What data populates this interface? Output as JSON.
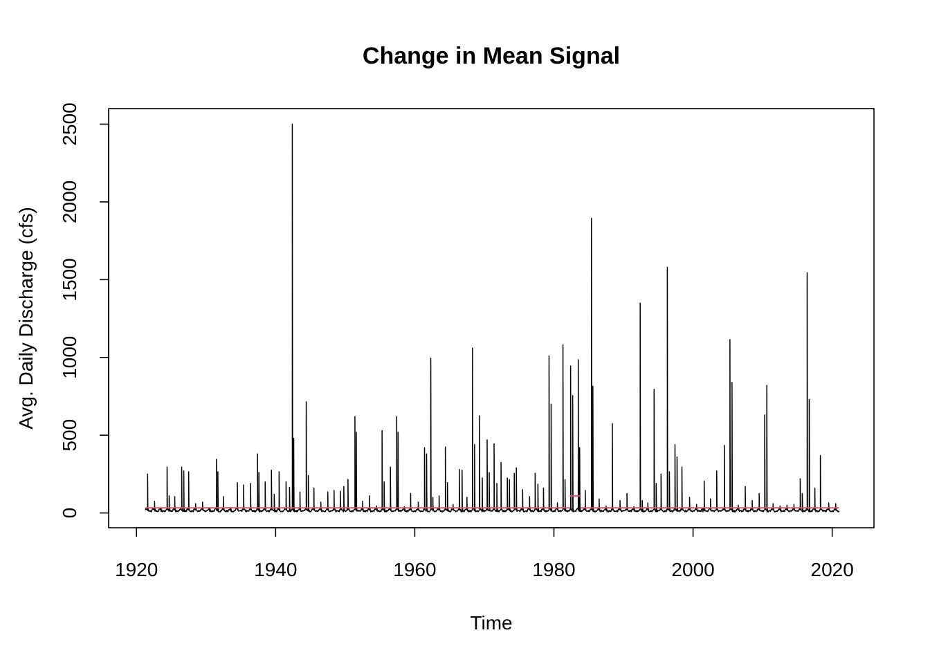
{
  "chart_data": {
    "type": "line",
    "title": "Change in Mean Signal",
    "xlabel": "Time",
    "ylabel": "Avg. Daily Discharge (cfs)",
    "xlim": [
      1916,
      2026
    ],
    "ylim": [
      -95,
      2600
    ],
    "x_ticks": [
      1920,
      1940,
      1960,
      1980,
      2000,
      2020
    ],
    "x_tick_labels": [
      "1920",
      "1940",
      "1960",
      "1980",
      "2000",
      "2020"
    ],
    "y_ticks": [
      0,
      500,
      1000,
      1500,
      2000,
      2500
    ],
    "y_tick_labels": [
      "0",
      "500",
      "1000",
      "1500",
      "2000",
      "2500"
    ],
    "grid": false,
    "legend": "none",
    "colors": {
      "series": "#000000",
      "mean": "#DF536B"
    },
    "series": [
      {
        "role": "discharge",
        "baseline": 12,
        "x_range": [
          1921.3,
          2021.0
        ],
        "peaks": [
          [
            1921.6,
            250
          ],
          [
            1922.6,
            75
          ],
          [
            1923.5,
            30
          ],
          [
            1924.4,
            295
          ],
          [
            1924.7,
            110
          ],
          [
            1925.5,
            105
          ],
          [
            1926.5,
            295
          ],
          [
            1926.8,
            270
          ],
          [
            1927.5,
            265
          ],
          [
            1928.5,
            60
          ],
          [
            1929.5,
            70
          ],
          [
            1930.5,
            25
          ],
          [
            1931.5,
            345
          ],
          [
            1931.7,
            265
          ],
          [
            1932.5,
            105
          ],
          [
            1933.5,
            35
          ],
          [
            1934.5,
            195
          ],
          [
            1935.4,
            180
          ],
          [
            1936.4,
            190
          ],
          [
            1937.4,
            380
          ],
          [
            1937.6,
            260
          ],
          [
            1938.5,
            200
          ],
          [
            1939.4,
            275
          ],
          [
            1939.8,
            120
          ],
          [
            1940.5,
            265
          ],
          [
            1941.5,
            200
          ],
          [
            1942.0,
            165
          ],
          [
            1942.4,
            2500
          ],
          [
            1942.6,
            480
          ],
          [
            1943.5,
            135
          ],
          [
            1944.4,
            715
          ],
          [
            1944.7,
            240
          ],
          [
            1945.5,
            160
          ],
          [
            1946.5,
            70
          ],
          [
            1947.5,
            135
          ],
          [
            1948.4,
            145
          ],
          [
            1949.3,
            140
          ],
          [
            1949.8,
            170
          ],
          [
            1950.4,
            215
          ],
          [
            1951.4,
            620
          ],
          [
            1951.6,
            520
          ],
          [
            1952.5,
            75
          ],
          [
            1953.5,
            110
          ],
          [
            1954.5,
            45
          ],
          [
            1955.3,
            530
          ],
          [
            1955.6,
            200
          ],
          [
            1956.5,
            295
          ],
          [
            1957.4,
            620
          ],
          [
            1957.6,
            520
          ],
          [
            1958.5,
            40
          ],
          [
            1959.4,
            125
          ],
          [
            1960.5,
            70
          ],
          [
            1961.4,
            420
          ],
          [
            1961.7,
            380
          ],
          [
            1962.3,
            995
          ],
          [
            1962.6,
            100
          ],
          [
            1963.5,
            110
          ],
          [
            1964.4,
            425
          ],
          [
            1964.7,
            195
          ],
          [
            1965.5,
            55
          ],
          [
            1966.4,
            280
          ],
          [
            1966.8,
            275
          ],
          [
            1967.5,
            100
          ],
          [
            1968.3,
            1060
          ],
          [
            1968.6,
            440
          ],
          [
            1969.3,
            625
          ],
          [
            1969.7,
            225
          ],
          [
            1970.4,
            470
          ],
          [
            1970.7,
            260
          ],
          [
            1971.4,
            445
          ],
          [
            1971.8,
            190
          ],
          [
            1972.4,
            325
          ],
          [
            1973.3,
            225
          ],
          [
            1973.6,
            215
          ],
          [
            1974.3,
            255
          ],
          [
            1974.6,
            290
          ],
          [
            1975.5,
            150
          ],
          [
            1976.5,
            105
          ],
          [
            1977.3,
            255
          ],
          [
            1977.7,
            185
          ],
          [
            1978.5,
            160
          ],
          [
            1979.3,
            1010
          ],
          [
            1979.6,
            700
          ],
          [
            1980.5,
            65
          ],
          [
            1981.3,
            1080
          ],
          [
            1981.6,
            215
          ],
          [
            1982.4,
            945
          ],
          [
            1982.7,
            755
          ],
          [
            1983.5,
            985
          ],
          [
            1983.7,
            420
          ],
          [
            1984.5,
            145
          ],
          [
            1985.4,
            1895
          ],
          [
            1985.6,
            815
          ],
          [
            1986.5,
            90
          ],
          [
            1987.5,
            45
          ],
          [
            1988.4,
            575
          ],
          [
            1989.5,
            80
          ],
          [
            1990.5,
            125
          ],
          [
            1991.5,
            40
          ],
          [
            1992.4,
            1350
          ],
          [
            1992.7,
            80
          ],
          [
            1993.5,
            65
          ],
          [
            1994.4,
            795
          ],
          [
            1994.7,
            190
          ],
          [
            1995.4,
            250
          ],
          [
            1996.3,
            1580
          ],
          [
            1996.6,
            265
          ],
          [
            1997.4,
            440
          ],
          [
            1997.7,
            360
          ],
          [
            1998.4,
            295
          ],
          [
            1999.5,
            100
          ],
          [
            2000.5,
            55
          ],
          [
            2001.4,
            20
          ],
          [
            2001.6,
            205
          ],
          [
            2002.5,
            90
          ],
          [
            2003.4,
            270
          ],
          [
            2004.5,
            435
          ],
          [
            2005.3,
            1115
          ],
          [
            2005.6,
            840
          ],
          [
            2006.5,
            50
          ],
          [
            2007.5,
            170
          ],
          [
            2008.5,
            80
          ],
          [
            2009.5,
            125
          ],
          [
            2010.3,
            630
          ],
          [
            2010.6,
            820
          ],
          [
            2011.5,
            60
          ],
          [
            2012.5,
            45
          ],
          [
            2013.5,
            50
          ],
          [
            2014.5,
            55
          ],
          [
            2015.4,
            220
          ],
          [
            2015.7,
            125
          ],
          [
            2016.4,
            1545
          ],
          [
            2016.7,
            730
          ],
          [
            2017.5,
            160
          ],
          [
            2018.3,
            370
          ],
          [
            2019.5,
            65
          ],
          [
            2020.5,
            60
          ]
        ]
      },
      {
        "role": "mean-segments",
        "segments": [
          [
            1921.3,
            1982.3,
            33
          ],
          [
            1982.3,
            1983.8,
            110
          ],
          [
            1983.8,
            2021.0,
            33
          ]
        ]
      }
    ]
  }
}
